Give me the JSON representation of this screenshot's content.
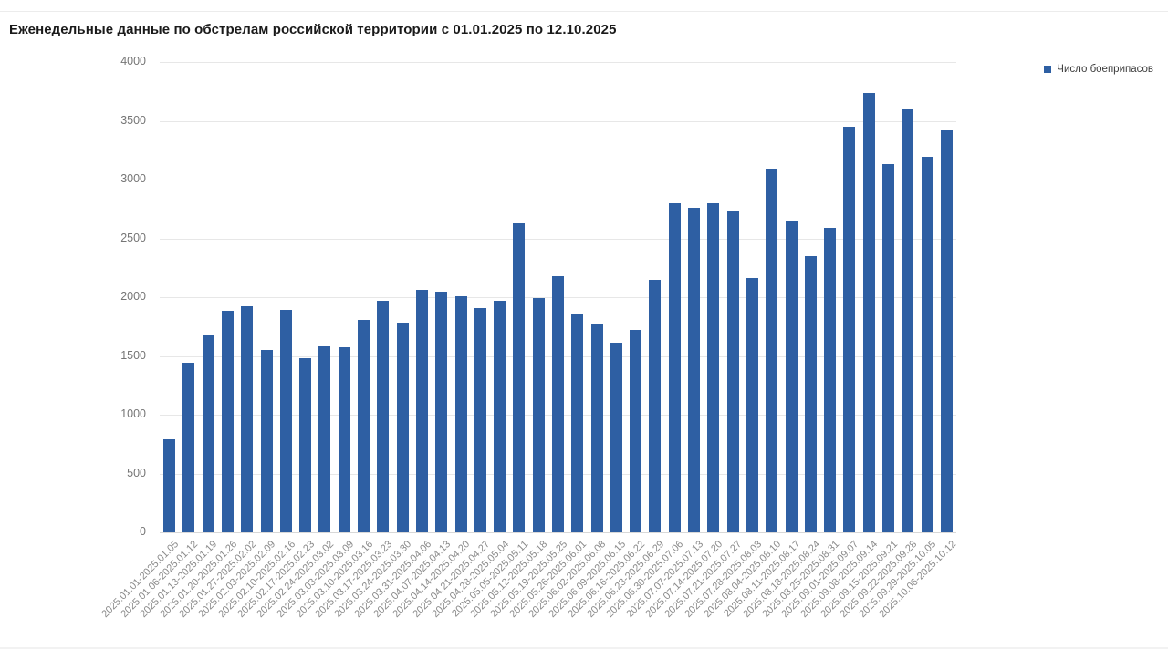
{
  "chart_data": {
    "type": "bar",
    "title": "Еженедельные данные по обстрелам российской территории с 01.01.2025 по 12.10.2025",
    "legend": "Число боеприпасов",
    "legend_position": "top-right",
    "grid": true,
    "xlabel": "",
    "ylabel": "",
    "ylim": [
      0,
      4000
    ],
    "y_ticks": [
      "0",
      "500",
      "1000",
      "1500",
      "2000",
      "2500",
      "3000",
      "3500",
      "4000"
    ],
    "bar_color": "#2e5fa3",
    "categories": [
      "2025.01.01-2025.01.05",
      "2025.01.06-2025.01.12",
      "2025.01.13-2025.01.19",
      "2025.01.20-2025.01.26",
      "2025.01.27-2025.02.02",
      "2025.02.03-2025.02.09",
      "2025.02.10-2025.02.16",
      "2025.02.17-2025.02.23",
      "2025.02.24-2025.03.02",
      "2025.03.03-2025.03.09",
      "2025.03.10-2025.03.16",
      "2025.03.17-2025.03.23",
      "2025.03.24-2025.03.30",
      "2025.03.31-2025.04.06",
      "2025.04.07-2025.04.13",
      "2025.04.14-2025.04.20",
      "2025.04.21-2025.04.27",
      "2025.04.28-2025.05.04",
      "2025.05.05-2025.05.11",
      "2025.05.12-2025.05.18",
      "2025.05.19-2025.05.25",
      "2025.05.26-2025.06.01",
      "2025.06.02-2025.06.08",
      "2025.06.09-2025.06.15",
      "2025.06.16-2025.06.22",
      "2025.06.23-2025.06.29",
      "2025.06.30-2025.07.06",
      "2025.07.07-2025.07.13",
      "2025.07.14-2025.07.20",
      "2025.07.21-2025.07.27",
      "2025.07.28-2025.08.03",
      "2025.08.04-2025.08.10",
      "2025.08.11-2025.08.17",
      "2025.08.18-2025.08.24",
      "2025.08.25-2025.08.31",
      "2025.09.01-2025.09.07",
      "2025.09.08-2025.09.14",
      "2025.09.15-2025.09.21",
      "2025.09.22-2025.09.28",
      "2025.09.29-2025.10.05",
      "2025.10.06-2025.10.12"
    ],
    "values": [
      790,
      1440,
      1680,
      1880,
      1920,
      1550,
      1890,
      1480,
      1580,
      1570,
      1810,
      1970,
      1780,
      2060,
      2050,
      2010,
      1910,
      1970,
      2630,
      1990,
      2180,
      1850,
      1770,
      1610,
      1720,
      2150,
      2800,
      2760,
      2800,
      2740,
      2160,
      3090,
      2650,
      2350,
      2590,
      3450,
      3740,
      3130,
      3600,
      3190,
      3420
    ]
  }
}
